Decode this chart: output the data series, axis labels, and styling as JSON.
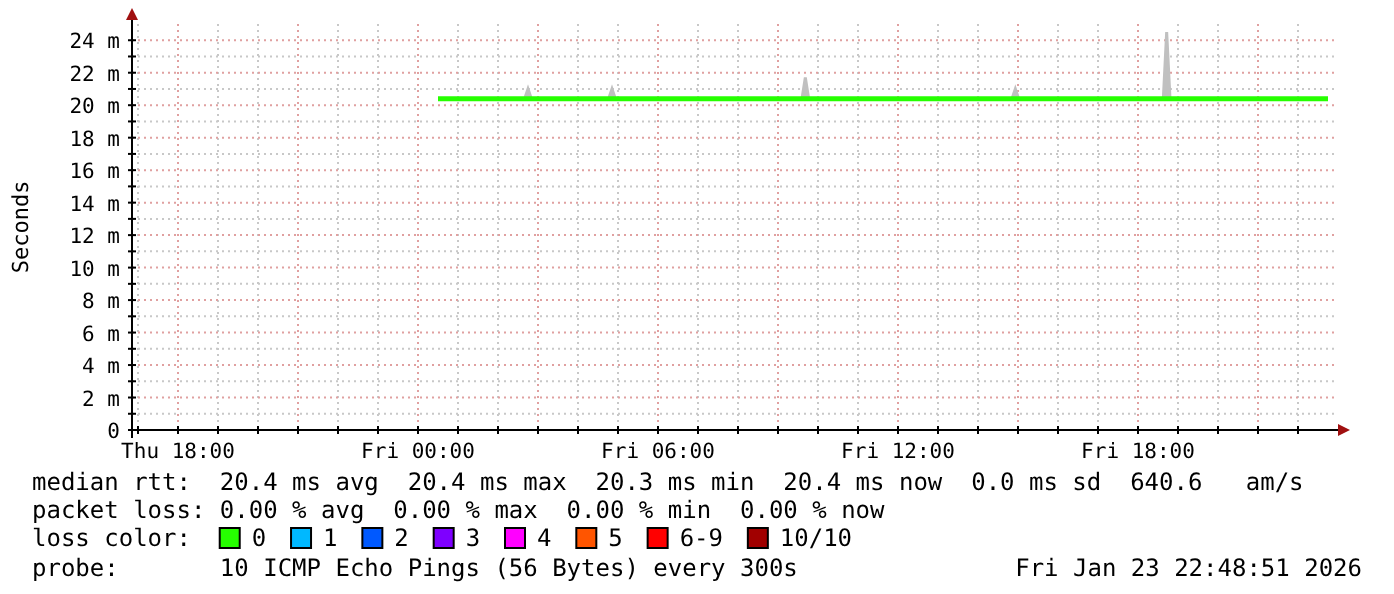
{
  "chart_data": {
    "type": "line",
    "ylabel": "Seconds",
    "x": [
      "2026-01-23T00:30",
      "2026-01-23T01:30",
      "2026-01-23T02:40",
      "2026-01-23T02:45",
      "2026-01-23T02:50",
      "2026-01-23T03:30",
      "2026-01-23T04:30",
      "2026-01-23T04:46",
      "2026-01-23T04:51",
      "2026-01-23T04:56",
      "2026-01-23T06:00",
      "2026-01-23T07:00",
      "2026-01-23T08:00",
      "2026-01-23T09:00",
      "2026-01-23T09:36",
      "2026-01-23T09:41",
      "2026-01-23T09:46",
      "2026-01-23T10:30",
      "2026-01-23T11:30",
      "2026-01-23T12:30",
      "2026-01-23T13:30",
      "2026-01-23T14:30",
      "2026-01-23T14:51",
      "2026-01-23T14:56",
      "2026-01-23T15:01",
      "2026-01-23T16:00",
      "2026-01-23T17:00",
      "2026-01-23T18:00",
      "2026-01-23T18:38",
      "2026-01-23T18:43",
      "2026-01-23T18:48",
      "2026-01-23T19:30",
      "2026-01-23T20:30",
      "2026-01-23T21:30",
      "2026-01-23T22:45"
    ],
    "series": [
      {
        "name": "0",
        "color": "#26ff00",
        "values": [
          20.4,
          20.4,
          20.4,
          20.4,
          20.4,
          20.4,
          20.4,
          20.4,
          20.4,
          20.4,
          20.4,
          20.4,
          20.4,
          20.4,
          20.4,
          20.4,
          20.4,
          20.4,
          20.4,
          20.4,
          20.4,
          20.4,
          20.4,
          20.4,
          20.4,
          20.4,
          20.4,
          20.4,
          20.4,
          20.4,
          20.4,
          20.4,
          20.4,
          20.4,
          20.4
        ],
        "lower": [
          20.4,
          20.4,
          20.4,
          20.4,
          20.4,
          20.4,
          20.4,
          20.4,
          20.4,
          20.4,
          20.4,
          20.4,
          20.4,
          20.4,
          20.4,
          20.4,
          20.4,
          20.4,
          20.4,
          20.4,
          20.4,
          20.4,
          20.4,
          20.4,
          20.4,
          20.4,
          20.4,
          20.4,
          20.4,
          20.4,
          20.4,
          20.4,
          20.4,
          20.4,
          20.4
        ],
        "upper": [
          20.4,
          20.4,
          20.4,
          21.0,
          20.4,
          20.4,
          20.4,
          20.4,
          21.0,
          20.4,
          20.4,
          20.4,
          20.4,
          20.4,
          20.4,
          21.7,
          20.4,
          20.4,
          20.4,
          20.4,
          20.4,
          20.4,
          20.4,
          21.0,
          20.4,
          20.4,
          20.4,
          20.4,
          20.4,
          24.5,
          20.4,
          20.4,
          20.4,
          20.4,
          20.4
        ]
      },
      {
        "name": "1",
        "color": "#00b8ff",
        "values": [
          null,
          null,
          null,
          null,
          null,
          null,
          null,
          null,
          null,
          null,
          null,
          null,
          null,
          null,
          null,
          null,
          null,
          null,
          null,
          null,
          null,
          null,
          null,
          null,
          null,
          null,
          null,
          null,
          null,
          null,
          null,
          null,
          null,
          null,
          null
        ]
      },
      {
        "name": "2",
        "color": "#0059ff",
        "values": [
          null,
          null,
          null,
          null,
          null,
          null,
          null,
          null,
          null,
          null,
          null,
          null,
          null,
          null,
          null,
          null,
          null,
          null,
          null,
          null,
          null,
          null,
          null,
          null,
          null,
          null,
          null,
          null,
          null,
          null,
          null,
          null,
          null,
          null,
          null
        ]
      },
      {
        "name": "3",
        "color": "#7e00ff",
        "values": [
          null,
          null,
          null,
          null,
          null,
          null,
          null,
          null,
          null,
          null,
          null,
          null,
          null,
          null,
          null,
          null,
          null,
          null,
          null,
          null,
          null,
          null,
          null,
          null,
          null,
          null,
          null,
          null,
          null,
          null,
          null,
          null,
          null,
          null,
          null
        ]
      },
      {
        "name": "4",
        "color": "#ff00ff",
        "values": [
          null,
          null,
          null,
          null,
          null,
          null,
          null,
          null,
          null,
          null,
          null,
          null,
          null,
          null,
          null,
          null,
          null,
          null,
          null,
          null,
          null,
          null,
          null,
          null,
          null,
          null,
          null,
          null,
          null,
          null,
          null,
          null,
          null,
          null,
          null
        ]
      },
      {
        "name": "5",
        "color": "#ff5500",
        "values": [
          null,
          null,
          null,
          null,
          null,
          null,
          null,
          null,
          null,
          null,
          null,
          null,
          null,
          null,
          null,
          null,
          null,
          null,
          null,
          null,
          null,
          null,
          null,
          null,
          null,
          null,
          null,
          null,
          null,
          null,
          null,
          null,
          null,
          null,
          null
        ]
      },
      {
        "name": "6-9",
        "color": "#ff0000",
        "values": [
          null,
          null,
          null,
          null,
          null,
          null,
          null,
          null,
          null,
          null,
          null,
          null,
          null,
          null,
          null,
          null,
          null,
          null,
          null,
          null,
          null,
          null,
          null,
          null,
          null,
          null,
          null,
          null,
          null,
          null,
          null,
          null,
          null,
          null,
          null
        ]
      },
      {
        "name": "10/10",
        "color": "#a10000",
        "values": [
          null,
          null,
          null,
          null,
          null,
          null,
          null,
          null,
          null,
          null,
          null,
          null,
          null,
          null,
          null,
          null,
          null,
          null,
          null,
          null,
          null,
          null,
          null,
          null,
          null,
          null,
          null,
          null,
          null,
          null,
          null,
          null,
          null,
          null,
          null
        ]
      }
    ],
    "legend": "bottom",
    "legend_title": "loss color:",
    "grid": true,
    "xlim": [
      "2026-01-22T16:51",
      "2026-01-23T23:00"
    ],
    "xticks": [
      {
        "value": "2026-01-22T17:00",
        "label": null
      },
      {
        "value": "2026-01-22T18:00",
        "label": "Thu 18:00"
      },
      {
        "value": "2026-01-22T19:00",
        "label": null
      },
      {
        "value": "2026-01-22T20:00",
        "label": null
      },
      {
        "value": "2026-01-22T21:00",
        "label": null
      },
      {
        "value": "2026-01-22T22:00",
        "label": null
      },
      {
        "value": "2026-01-22T23:00",
        "label": null
      },
      {
        "value": "2026-01-23T00:00",
        "label": "Fri 00:00"
      },
      {
        "value": "2026-01-23T01:00",
        "label": null
      },
      {
        "value": "2026-01-23T02:00",
        "label": null
      },
      {
        "value": "2026-01-23T03:00",
        "label": null
      },
      {
        "value": "2026-01-23T04:00",
        "label": null
      },
      {
        "value": "2026-01-23T05:00",
        "label": null
      },
      {
        "value": "2026-01-23T06:00",
        "label": "Fri 06:00"
      },
      {
        "value": "2026-01-23T07:00",
        "label": null
      },
      {
        "value": "2026-01-23T08:00",
        "label": null
      },
      {
        "value": "2026-01-23T09:00",
        "label": null
      },
      {
        "value": "2026-01-23T10:00",
        "label": null
      },
      {
        "value": "2026-01-23T11:00",
        "label": null
      },
      {
        "value": "2026-01-23T12:00",
        "label": "Fri 12:00"
      },
      {
        "value": "2026-01-23T13:00",
        "label": null
      },
      {
        "value": "2026-01-23T14:00",
        "label": null
      },
      {
        "value": "2026-01-23T15:00",
        "label": null
      },
      {
        "value": "2026-01-23T16:00",
        "label": null
      },
      {
        "value": "2026-01-23T17:00",
        "label": null
      },
      {
        "value": "2026-01-23T18:00",
        "label": "Fri 18:00"
      },
      {
        "value": "2026-01-23T19:00",
        "label": null
      },
      {
        "value": "2026-01-23T20:00",
        "label": null
      },
      {
        "value": "2026-01-23T21:00",
        "label": null
      },
      {
        "value": "2026-01-23T22:00",
        "label": null
      }
    ],
    "ylim": [
      0,
      25
    ],
    "yticks": [
      0,
      {
        "value": 1,
        "label": null
      },
      {
        "value": 2,
        "label": "2 m"
      },
      {
        "value": 3,
        "label": null
      },
      {
        "value": 4,
        "label": "4 m"
      },
      {
        "value": 5,
        "label": null
      },
      {
        "value": 6,
        "label": "6 m"
      },
      {
        "value": 7,
        "label": null
      },
      {
        "value": 8,
        "label": "8 m"
      },
      {
        "value": 9,
        "label": null
      },
      {
        "value": 10,
        "label": "10 m"
      },
      {
        "value": 11,
        "label": null
      },
      {
        "value": 12,
        "label": "12 m"
      },
      {
        "value": 13,
        "label": null
      },
      {
        "value": 14,
        "label": "14 m"
      },
      {
        "value": 15,
        "label": null
      },
      {
        "value": 16,
        "label": "16 m"
      },
      {
        "value": 17,
        "label": null
      },
      {
        "value": 18,
        "label": "18 m"
      },
      {
        "value": 19,
        "label": null
      },
      {
        "value": 20,
        "label": "20 m"
      },
      {
        "value": 21,
        "label": null
      },
      {
        "value": 22,
        "label": "22 m"
      },
      {
        "value": 23,
        "label": null
      },
      {
        "value": 24,
        "label": "24 m"
      }
    ],
    "line_style": "solid",
    "marker": "none",
    "annotations": [
      "median rtt:  20.4 ms avg  20.4 ms max  20.3 ms min  20.4 ms now  0.0 ms sd  640.6   am/s",
      "packet loss: 0.00 % avg  0.00 % max  0.00 % min  0.00 % now",
      "probe:       10 ICMP Echo Pings (56 Bytes) every 300s",
      "Fri Jan 23 22:48:51 2026"
    ]
  }
}
